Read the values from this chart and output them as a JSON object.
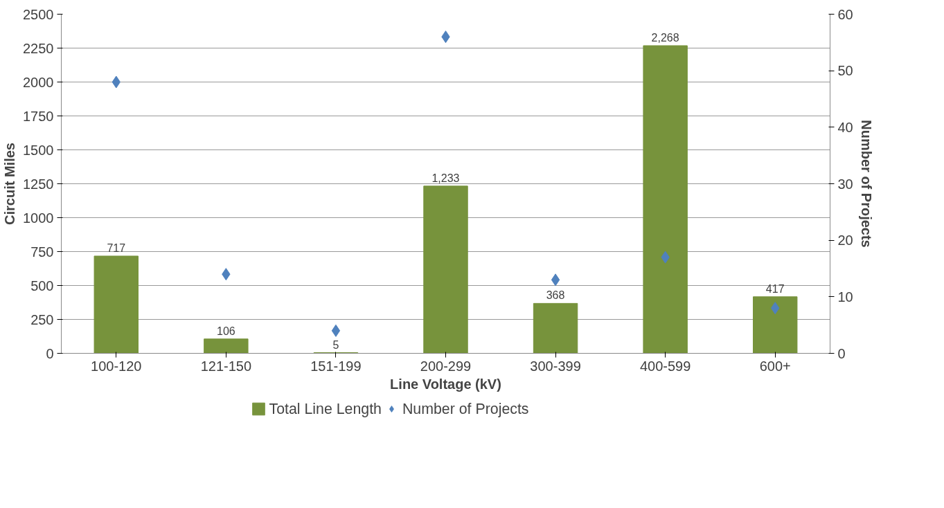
{
  "chart_data": {
    "type": "bar",
    "xlabel": "Line Voltage (kV)",
    "ylabel": "Circuit Miles",
    "y2label": "Number of Projects",
    "categories": [
      "100-120",
      "121-150",
      "151-199",
      "200-299",
      "300-399",
      "400-599",
      "600+"
    ],
    "series": [
      {
        "name": "Total Line Length",
        "type": "bar",
        "color": "#77933c",
        "values": [
          717,
          106,
          5,
          1233,
          368,
          2268,
          417
        ],
        "value_labels": [
          "717",
          "106",
          "5",
          "1,233",
          "368",
          "2,268",
          "417"
        ]
      },
      {
        "name": "Number of Projects",
        "type": "scatter",
        "axis": "y2",
        "marker": "diamond",
        "color": "#4f81bd",
        "values": [
          48,
          14,
          4,
          56,
          13,
          17,
          8
        ]
      }
    ],
    "ylim": [
      0,
      2500
    ],
    "yticks": [
      0,
      250,
      500,
      750,
      1000,
      1250,
      1500,
      1750,
      2000,
      2250,
      2500
    ],
    "y2lim": [
      0,
      60
    ],
    "y2ticks": [
      0,
      10,
      20,
      30,
      40,
      50,
      60
    ],
    "grid": "y",
    "legend": "bottom"
  }
}
